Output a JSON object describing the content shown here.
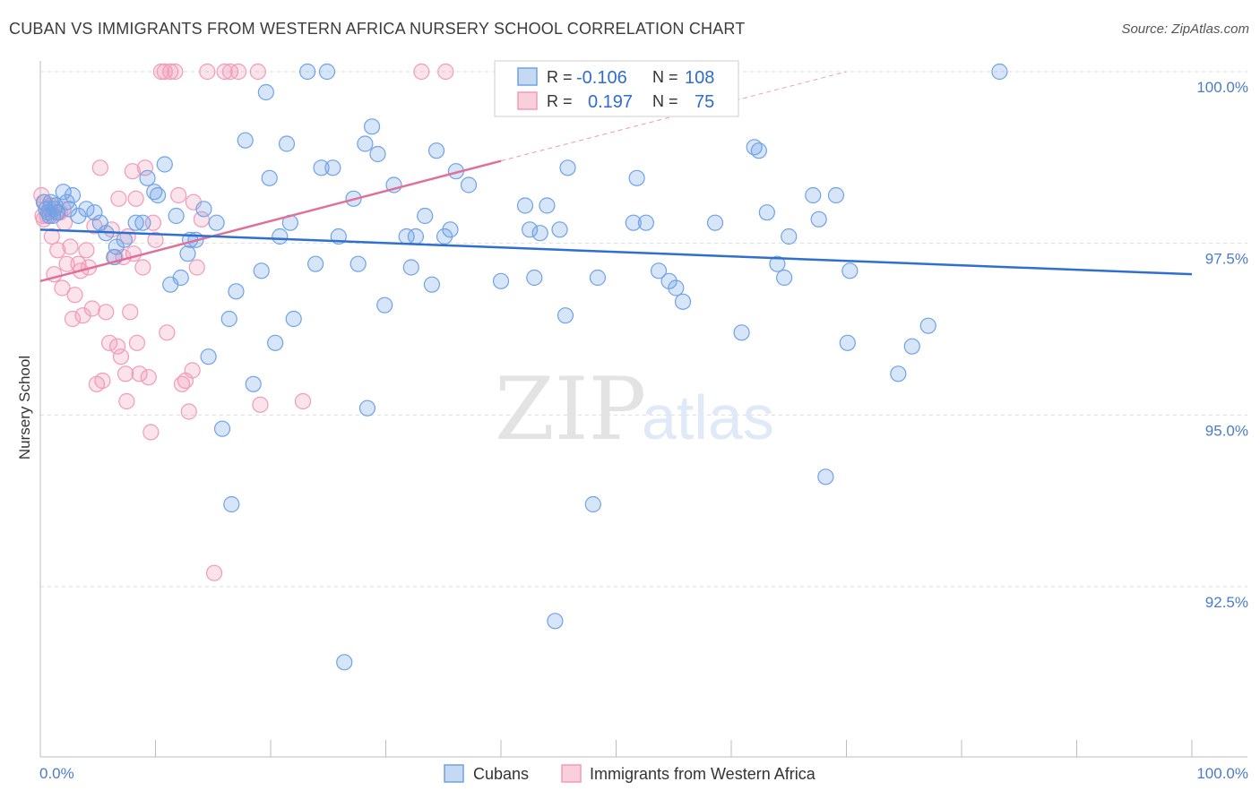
{
  "title": "CUBAN VS IMMIGRANTS FROM WESTERN AFRICA NURSERY SCHOOL CORRELATION CHART",
  "source": "Source: ZipAtlas.com",
  "watermark": {
    "zip": "ZIP",
    "atlas": "atlas"
  },
  "legend": {
    "rows": [
      {
        "r_label": "R =",
        "r_value": "-0.106",
        "n_label": "N =",
        "n_value": "108"
      },
      {
        "r_label": "R =",
        "r_value": "0.197",
        "n_label": "N =",
        "n_value": "75"
      }
    ]
  },
  "chart_data": {
    "type": "scatter",
    "title": "CUBAN VS IMMIGRANTS FROM WESTERN AFRICA NURSERY SCHOOL CORRELATION CHART",
    "xlabel": "",
    "ylabel": "Nursery School",
    "xlim": [
      0,
      100
    ],
    "ylim": [
      90.3,
      100.2
    ],
    "x_tick_labels": [
      "0.0%",
      "100.0%"
    ],
    "y_ticks": [
      {
        "value": 100.0,
        "label": "100.0%"
      },
      {
        "value": 97.5,
        "label": "97.5%"
      },
      {
        "value": 95.0,
        "label": "95.0%"
      },
      {
        "value": 92.5,
        "label": "92.5%"
      }
    ],
    "colors": {
      "cubans": "#6fa2e6",
      "cubans_line": "#2f6fd0",
      "immigrants": "#f29ab8",
      "immigrants_line": "#e0709a"
    },
    "series": [
      {
        "name": "Cubans",
        "r": -0.106,
        "n": 108,
        "trend": {
          "x": [
            0,
            100
          ],
          "y": [
            97.7,
            97.05
          ]
        },
        "points": [
          [
            0.3,
            98.1
          ],
          [
            0.5,
            98.0
          ],
          [
            0.7,
            97.95
          ],
          [
            0.9,
            98.1
          ],
          [
            1.1,
            97.9
          ],
          [
            1.3,
            98.05
          ],
          [
            1.5,
            97.95
          ],
          [
            2.0,
            98.25
          ],
          [
            2.3,
            98.1
          ],
          [
            2.8,
            98.2
          ],
          [
            3.3,
            97.9
          ],
          [
            4.0,
            98.0
          ],
          [
            4.7,
            97.95
          ],
          [
            5.2,
            97.8
          ],
          [
            5.7,
            97.65
          ],
          [
            6.4,
            97.3
          ],
          [
            6.6,
            97.45
          ],
          [
            7.3,
            97.55
          ],
          [
            8.3,
            97.8
          ],
          [
            8.9,
            97.8
          ],
          [
            9.3,
            98.45
          ],
          [
            9.9,
            98.25
          ],
          [
            10.2,
            98.2
          ],
          [
            10.8,
            98.65
          ],
          [
            11.3,
            96.9
          ],
          [
            11.8,
            97.9
          ],
          [
            12.2,
            97.0
          ],
          [
            12.8,
            97.35
          ],
          [
            13.0,
            97.55
          ],
          [
            13.5,
            97.55
          ],
          [
            14.2,
            98.0
          ],
          [
            14.6,
            95.85
          ],
          [
            15.3,
            97.8
          ],
          [
            15.8,
            94.8
          ],
          [
            16.4,
            96.4
          ],
          [
            16.6,
            93.7
          ],
          [
            17.0,
            96.8
          ],
          [
            17.8,
            99.0
          ],
          [
            18.5,
            95.45
          ],
          [
            19.2,
            97.1
          ],
          [
            19.6,
            99.7
          ],
          [
            19.9,
            98.45
          ],
          [
            20.4,
            96.05
          ],
          [
            20.8,
            97.6
          ],
          [
            21.4,
            98.95
          ],
          [
            21.7,
            97.8
          ],
          [
            22.0,
            96.4
          ],
          [
            23.2,
            100.0
          ],
          [
            23.9,
            97.2
          ],
          [
            24.4,
            98.6
          ],
          [
            24.9,
            100.0
          ],
          [
            25.4,
            98.6
          ],
          [
            25.9,
            97.6
          ],
          [
            26.4,
            91.4
          ],
          [
            27.2,
            98.15
          ],
          [
            27.6,
            97.2
          ],
          [
            28.4,
            95.1
          ],
          [
            28.2,
            98.95
          ],
          [
            28.8,
            99.2
          ],
          [
            29.3,
            98.8
          ],
          [
            29.9,
            96.6
          ],
          [
            30.7,
            98.35
          ],
          [
            31.8,
            97.6
          ],
          [
            32.2,
            97.15
          ],
          [
            32.6,
            97.6
          ],
          [
            33.4,
            97.9
          ],
          [
            34.0,
            96.9
          ],
          [
            34.4,
            98.85
          ],
          [
            35.1,
            97.6
          ],
          [
            35.6,
            97.7
          ],
          [
            36.1,
            98.55
          ],
          [
            37.2,
            98.35
          ],
          [
            40.0,
            96.95
          ],
          [
            42.1,
            98.05
          ],
          [
            42.5,
            97.7
          ],
          [
            42.9,
            97.0
          ],
          [
            43.4,
            97.65
          ],
          [
            44.0,
            98.05
          ],
          [
            44.7,
            92.0
          ],
          [
            45.1,
            97.7
          ],
          [
            45.6,
            96.45
          ],
          [
            45.8,
            98.6
          ],
          [
            48.0,
            93.7
          ],
          [
            48.4,
            97.0
          ],
          [
            51.5,
            97.8
          ],
          [
            51.8,
            98.45
          ],
          [
            52.6,
            97.8
          ],
          [
            53.7,
            97.1
          ],
          [
            54.6,
            96.95
          ],
          [
            55.2,
            96.85
          ],
          [
            55.8,
            96.65
          ],
          [
            58.6,
            97.8
          ],
          [
            60.9,
            96.2
          ],
          [
            62.0,
            98.9
          ],
          [
            62.4,
            98.85
          ],
          [
            63.1,
            97.95
          ],
          [
            64.0,
            97.2
          ],
          [
            64.6,
            97.0
          ],
          [
            65.0,
            97.6
          ],
          [
            67.1,
            98.2
          ],
          [
            67.6,
            97.85
          ],
          [
            68.2,
            94.1
          ],
          [
            69.1,
            98.2
          ],
          [
            70.1,
            96.05
          ],
          [
            70.3,
            97.1
          ],
          [
            74.5,
            95.6
          ],
          [
            75.7,
            96.0
          ],
          [
            77.1,
            96.3
          ],
          [
            83.3,
            100.0
          ],
          [
            0.8,
            97.9
          ],
          [
            1.2,
            98.0
          ],
          [
            2.5,
            98.0
          ]
        ]
      },
      {
        "name": "Immigrants from Western Africa",
        "r": 0.197,
        "n": 75,
        "trend": {
          "x": [
            0,
            40
          ],
          "y": [
            96.95,
            98.7
          ]
        },
        "trend_dashed": {
          "x": [
            40,
            70
          ],
          "y": [
            98.7,
            100.0
          ]
        },
        "points": [
          [
            0.1,
            98.2
          ],
          [
            0.2,
            97.9
          ],
          [
            0.4,
            98.1
          ],
          [
            0.6,
            97.9
          ],
          [
            0.8,
            98.0
          ],
          [
            1.0,
            97.6
          ],
          [
            1.2,
            97.05
          ],
          [
            1.5,
            97.4
          ],
          [
            1.7,
            97.95
          ],
          [
            1.9,
            96.85
          ],
          [
            2.1,
            97.8
          ],
          [
            2.3,
            97.2
          ],
          [
            2.6,
            97.45
          ],
          [
            2.8,
            96.4
          ],
          [
            3.0,
            96.75
          ],
          [
            3.3,
            97.2
          ],
          [
            3.5,
            97.1
          ],
          [
            3.7,
            96.45
          ],
          [
            4.0,
            97.4
          ],
          [
            4.2,
            97.15
          ],
          [
            4.5,
            96.55
          ],
          [
            4.7,
            97.75
          ],
          [
            4.9,
            95.45
          ],
          [
            5.2,
            98.6
          ],
          [
            5.4,
            95.5
          ],
          [
            5.7,
            96.5
          ],
          [
            6.0,
            96.05
          ],
          [
            6.2,
            97.7
          ],
          [
            6.5,
            97.3
          ],
          [
            6.7,
            96.0
          ],
          [
            7.0,
            95.85
          ],
          [
            7.2,
            97.3
          ],
          [
            7.4,
            95.6
          ],
          [
            7.6,
            97.6
          ],
          [
            7.8,
            96.5
          ],
          [
            7.5,
            95.2
          ],
          [
            8.1,
            97.35
          ],
          [
            8.4,
            96.05
          ],
          [
            8.6,
            95.6
          ],
          [
            8.9,
            97.15
          ],
          [
            9.1,
            98.6
          ],
          [
            9.4,
            95.55
          ],
          [
            9.6,
            94.75
          ],
          [
            9.8,
            97.8
          ],
          [
            10.0,
            97.55
          ],
          [
            10.5,
            100.0
          ],
          [
            10.8,
            100.0
          ],
          [
            11.3,
            100.0
          ],
          [
            11.7,
            100.0
          ],
          [
            12.0,
            98.2
          ],
          [
            12.3,
            95.45
          ],
          [
            12.6,
            95.5
          ],
          [
            12.9,
            95.05
          ],
          [
            13.2,
            95.65
          ],
          [
            13.6,
            97.15
          ],
          [
            14.0,
            97.85
          ],
          [
            14.5,
            100.0
          ],
          [
            15.1,
            92.7
          ],
          [
            16.0,
            100.0
          ],
          [
            16.5,
            100.0
          ],
          [
            17.2,
            100.0
          ],
          [
            18.9,
            100.0
          ],
          [
            19.1,
            95.15
          ],
          [
            22.8,
            95.2
          ],
          [
            33.1,
            100.0
          ],
          [
            35.2,
            100.0
          ],
          [
            0.3,
            97.85
          ],
          [
            0.9,
            98.05
          ],
          [
            1.4,
            97.95
          ],
          [
            2.0,
            98.0
          ],
          [
            6.8,
            98.15
          ],
          [
            8.0,
            98.55
          ],
          [
            8.3,
            98.15
          ],
          [
            11.0,
            96.2
          ],
          [
            13.3,
            98.1
          ]
        ]
      }
    ]
  },
  "bottom_legend": [
    {
      "label": "Cubans"
    },
    {
      "label": "Immigrants from Western Africa"
    }
  ]
}
